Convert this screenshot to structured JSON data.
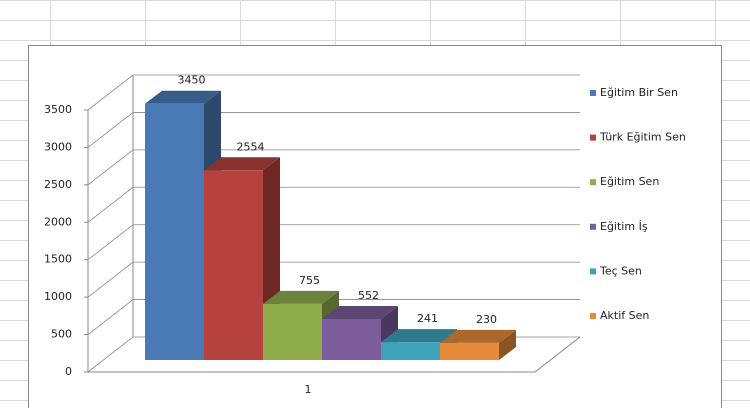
{
  "chart_data": {
    "type": "bar3d",
    "categories": [
      "1"
    ],
    "series": [
      {
        "name": "Eğitim Bir Sen",
        "color": "#4a7ab5",
        "values": [
          3450
        ]
      },
      {
        "name": "Türk Eğitim Sen",
        "color": "#b5423e",
        "values": [
          2554
        ]
      },
      {
        "name": "Eğitim Sen",
        "color": "#8fad4d",
        "values": [
          755
        ]
      },
      {
        "name": "Eğitim İş",
        "color": "#7c5c9b",
        "values": [
          552
        ]
      },
      {
        "name": "Teç Sen",
        "color": "#3ea3b8",
        "values": [
          241
        ]
      },
      {
        "name": "Aktif Sen",
        "color": "#e58b3a",
        "values": [
          230
        ]
      }
    ],
    "ylim": [
      0,
      3500
    ],
    "yticks": [
      0,
      500,
      1000,
      1500,
      2000,
      2500,
      3000,
      3500
    ],
    "grid": true,
    "legend": "right"
  }
}
